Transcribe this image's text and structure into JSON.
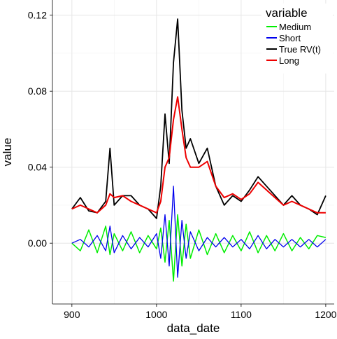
{
  "chart_data": {
    "type": "line",
    "xlabel": "data_date",
    "ylabel": "value",
    "xlim": [
      877,
      1210
    ],
    "ylim": [
      -0.032,
      0.128
    ],
    "xticks": [
      900,
      1000,
      1100,
      1200
    ],
    "xtick_labels": [
      "900",
      "1000",
      "1100",
      "1200"
    ],
    "yticks": [
      0.0,
      0.04,
      0.08,
      0.12
    ],
    "ytick_labels": [
      "0.00",
      "0.04",
      "0.08",
      "0.12"
    ],
    "grid": true,
    "legend": {
      "title": "variable",
      "placement": "top-right",
      "entries": [
        "Medium",
        "Short",
        "True RV(t)",
        "Long"
      ]
    },
    "colors": {
      "Medium": "#00ee00",
      "Short": "#0000ee",
      "True RV(t)": "#000000",
      "Long": "#ee0000"
    },
    "x": [
      900,
      910,
      920,
      930,
      940,
      945,
      950,
      960,
      970,
      980,
      990,
      1000,
      1005,
      1010,
      1015,
      1020,
      1025,
      1030,
      1035,
      1040,
      1050,
      1060,
      1070,
      1080,
      1090,
      1100,
      1110,
      1120,
      1130,
      1140,
      1150,
      1160,
      1170,
      1180,
      1190,
      1200
    ],
    "series": [
      {
        "name": "True RV(t)",
        "values": [
          0.018,
          0.024,
          0.017,
          0.016,
          0.022,
          0.05,
          0.02,
          0.025,
          0.025,
          0.02,
          0.018,
          0.013,
          0.03,
          0.068,
          0.042,
          0.095,
          0.118,
          0.07,
          0.05,
          0.055,
          0.042,
          0.05,
          0.03,
          0.02,
          0.025,
          0.022,
          0.028,
          0.035,
          0.03,
          0.025,
          0.02,
          0.025,
          0.02,
          0.018,
          0.015,
          0.025
        ]
      },
      {
        "name": "Long",
        "values": [
          0.018,
          0.02,
          0.018,
          0.016,
          0.02,
          0.026,
          0.024,
          0.025,
          0.022,
          0.02,
          0.018,
          0.016,
          0.022,
          0.04,
          0.045,
          0.065,
          0.077,
          0.06,
          0.045,
          0.04,
          0.04,
          0.043,
          0.03,
          0.024,
          0.026,
          0.023,
          0.026,
          0.032,
          0.028,
          0.024,
          0.02,
          0.022,
          0.02,
          0.018,
          0.016,
          0.016
        ]
      },
      {
        "name": "Medium",
        "values": [
          0.0,
          -0.004,
          0.007,
          -0.005,
          0.009,
          -0.006,
          0.005,
          -0.004,
          0.006,
          -0.005,
          0.004,
          -0.003,
          0.008,
          -0.01,
          0.012,
          -0.02,
          0.015,
          -0.012,
          0.01,
          -0.008,
          0.007,
          -0.006,
          0.005,
          -0.005,
          0.004,
          -0.004,
          0.006,
          -0.005,
          0.004,
          -0.004,
          0.005,
          -0.004,
          0.003,
          -0.003,
          0.004,
          0.003
        ]
      },
      {
        "name": "Short",
        "values": [
          0.0,
          0.002,
          -0.002,
          0.004,
          -0.004,
          0.009,
          -0.005,
          0.004,
          -0.003,
          0.003,
          -0.002,
          0.005,
          -0.008,
          0.015,
          -0.012,
          0.03,
          -0.018,
          0.012,
          -0.008,
          0.006,
          -0.004,
          0.003,
          -0.002,
          0.003,
          -0.002,
          0.002,
          -0.003,
          0.004,
          -0.003,
          0.002,
          -0.002,
          0.002,
          -0.002,
          0.002,
          -0.002,
          0.002
        ]
      }
    ]
  }
}
